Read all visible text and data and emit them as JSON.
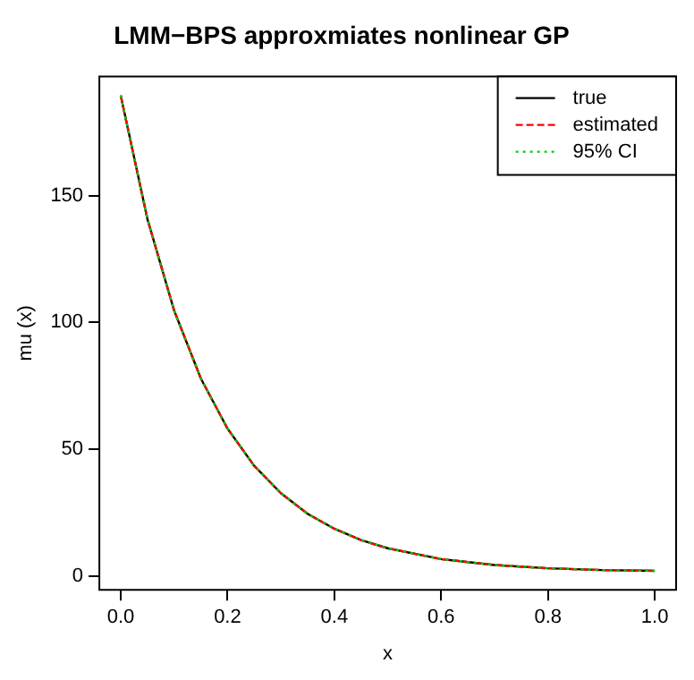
{
  "chart_data": {
    "type": "line",
    "title": "LMM−BPS approxmiates nonlinear GP",
    "xlabel": "x",
    "ylabel": "mu (x)",
    "x": [
      0,
      0.05,
      0.1,
      0.15,
      0.2,
      0.25,
      0.3,
      0.35,
      0.4,
      0.45,
      0.5,
      0.6,
      0.7,
      0.8,
      0.9,
      1.0
    ],
    "series": [
      {
        "name": "true",
        "color": "#000000",
        "line_style": "solid",
        "values": [
          189.5,
          140.8,
          104.7,
          77.9,
          58.1,
          43.4,
          32.6,
          24.5,
          18.6,
          14.1,
          10.9,
          6.6,
          4.3,
          3.0,
          2.3,
          2.0
        ]
      },
      {
        "name": "estimated",
        "color": "#ff0000",
        "line_style": "dashed",
        "values": [
          189.5,
          140.8,
          104.7,
          77.9,
          58.1,
          43.4,
          32.6,
          24.5,
          18.6,
          14.1,
          10.9,
          6.6,
          4.3,
          3.0,
          2.3,
          2.0
        ]
      },
      {
        "name": "95% CI",
        "color": "#00cd00",
        "line_style": "dotted",
        "values": [
          189.5,
          140.8,
          104.7,
          77.9,
          58.1,
          43.4,
          32.6,
          24.5,
          18.6,
          14.1,
          10.9,
          6.6,
          4.3,
          3.0,
          2.3,
          2.0
        ]
      }
    ],
    "xlim": [
      -0.04,
      1.04
    ],
    "ylim": [
      -5.5,
      197
    ],
    "xticks": [
      {
        "value": 0,
        "label": "0.0"
      },
      0.2,
      0.4,
      0.6,
      0.8,
      {
        "value": 1,
        "label": "1.0"
      }
    ],
    "yticks": [
      0,
      50,
      100,
      150
    ],
    "grid": false,
    "legend": "top right",
    "marker": "none"
  }
}
